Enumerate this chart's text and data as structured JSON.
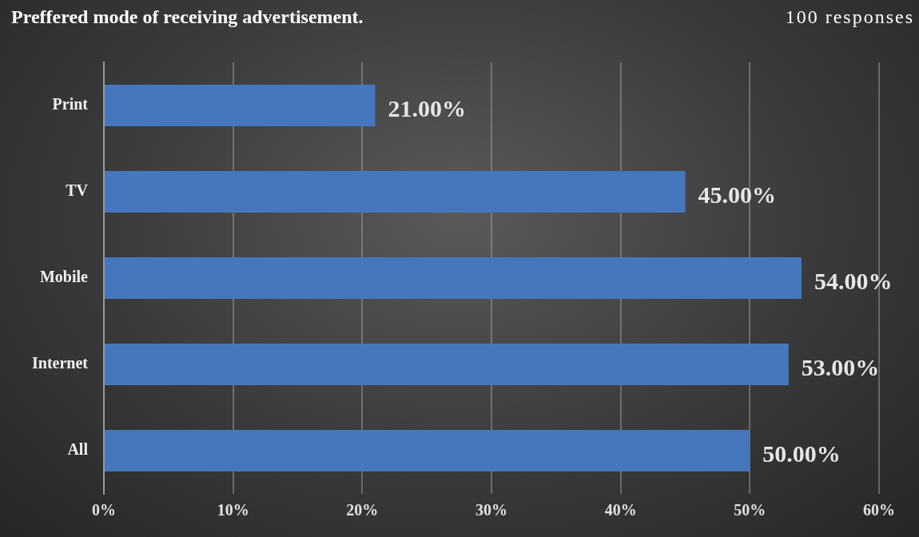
{
  "chart_data": {
    "type": "bar",
    "orientation": "horizontal",
    "title": "Preffered mode of receiving advertisement.",
    "subtitle": "100 responses",
    "categories": [
      "Print",
      "TV",
      "Mobile",
      "Internet",
      "All"
    ],
    "values": [
      21,
      45,
      54,
      53,
      50
    ],
    "color": "#4677bd",
    "value_labels": [
      "21.00%",
      "45.00%",
      "54.00%",
      "53.00%",
      "50.00%"
    ],
    "xlim": [
      0,
      60
    ],
    "xticks": [
      {
        "value": 0,
        "label": "0%"
      },
      {
        "value": 10,
        "label": "10%"
      },
      {
        "value": 20,
        "label": "20%"
      },
      {
        "value": 30,
        "label": "30%"
      },
      {
        "value": 40,
        "label": "40%"
      },
      {
        "value": 50,
        "label": "50%"
      },
      {
        "value": 60,
        "label": "60%"
      }
    ],
    "grid": "x",
    "legend": false
  }
}
